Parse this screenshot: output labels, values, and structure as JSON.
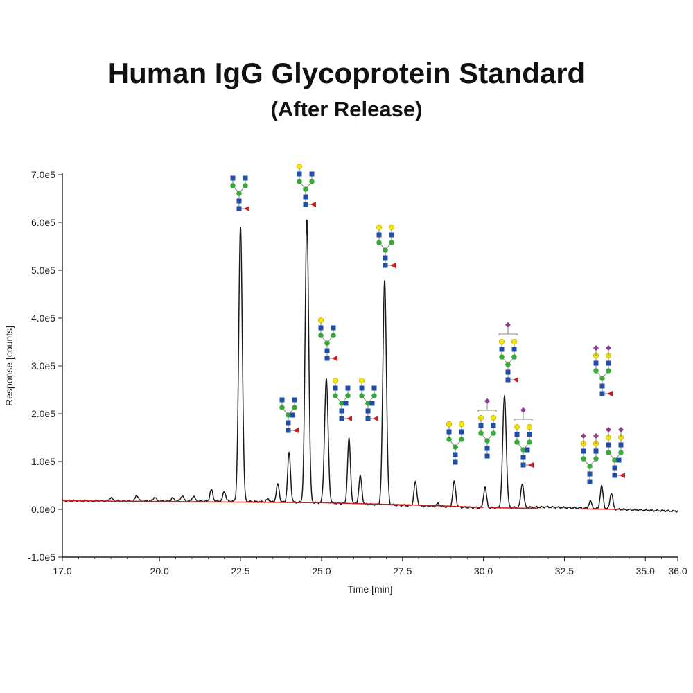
{
  "chart_data": {
    "type": "line",
    "title": "Human IgG Glycoprotein Standard",
    "subtitle": "(After Release)",
    "xlabel": "Time [min]",
    "ylabel": "Response [counts]",
    "xlim": [
      17.0,
      36.0
    ],
    "ylim": [
      -100000,
      700000
    ],
    "x_tick_values": [
      17.0,
      20.0,
      22.5,
      25.0,
      27.5,
      30.0,
      32.5,
      35.0,
      36.0
    ],
    "x_tick_labels": [
      "17.0",
      "20.0",
      "22.5",
      "25.0",
      "27.5",
      "30.0",
      "32.5",
      "35.0",
      "36.0"
    ],
    "y_tick_values": [
      -100000,
      0,
      100000,
      200000,
      300000,
      400000,
      500000,
      600000,
      700000
    ],
    "y_tick_labels": [
      "-1.0e5",
      "0.0e0",
      "1.0e5",
      "2.0e5",
      "3.0e5",
      "4.0e5",
      "5.0e5",
      "6.0e5",
      "7.0e5"
    ],
    "grid": false,
    "series": [
      {
        "color": "#1a1a1a",
        "baseline": [
          [
            17.0,
            18000
          ],
          [
            22.0,
            17000
          ],
          [
            25.0,
            14000
          ],
          [
            30.0,
            3000
          ],
          [
            32.0,
            5000
          ],
          [
            36.0,
            -4000
          ]
        ],
        "peaks": [
          {
            "x": 18.5,
            "height": 7000
          },
          {
            "x": 19.3,
            "height": 12000
          },
          {
            "x": 19.85,
            "height": 8000
          },
          {
            "x": 20.4,
            "height": 6000
          },
          {
            "x": 20.7,
            "height": 11000
          },
          {
            "x": 21.05,
            "height": 10000
          },
          {
            "x": 21.6,
            "height": 24000
          },
          {
            "x": 22.0,
            "height": 20000
          },
          {
            "x": 22.5,
            "height": 575000
          },
          {
            "x": 23.35,
            "height": 6000
          },
          {
            "x": 23.65,
            "height": 37000
          },
          {
            "x": 24.0,
            "height": 103000
          },
          {
            "x": 24.55,
            "height": 593000
          },
          {
            "x": 25.15,
            "height": 258000
          },
          {
            "x": 25.85,
            "height": 135000
          },
          {
            "x": 26.2,
            "height": 58000
          },
          {
            "x": 26.95,
            "height": 470000
          },
          {
            "x": 27.9,
            "height": 49000
          },
          {
            "x": 28.6,
            "height": 6000
          },
          {
            "x": 29.1,
            "height": 53000
          },
          {
            "x": 30.05,
            "height": 43000
          },
          {
            "x": 30.65,
            "height": 233000
          },
          {
            "x": 31.2,
            "height": 50000
          },
          {
            "x": 33.3,
            "height": 15000
          },
          {
            "x": 33.65,
            "height": 47000
          },
          {
            "x": 33.95,
            "height": 33000
          }
        ]
      },
      {
        "color": "#d01a1a",
        "segments": [
          [
            [
              17.0,
              18000
            ],
            [
              25.0,
              14000
            ],
            [
              28.5,
              8000
            ],
            [
              30.0,
              4000
            ]
          ],
          [
            [
              30.2,
              3500
            ],
            [
              31.7,
              2000
            ]
          ],
          [
            [
              33.0,
              1000
            ],
            [
              34.2,
              0
            ]
          ]
        ]
      }
    ],
    "glycan_annotations": [
      {
        "x": 22.5,
        "structure": "G0F"
      },
      {
        "x": 24.0,
        "structure": "G0FB"
      },
      {
        "x": 24.55,
        "structure": "G1F"
      },
      {
        "x": 25.15,
        "structure": "G1F"
      },
      {
        "x": 25.85,
        "structure": "G1FB"
      },
      {
        "x": 26.2,
        "structure": "G1FB"
      },
      {
        "x": 26.95,
        "structure": "G2F"
      },
      {
        "x": 29.1,
        "structure": "G2"
      },
      {
        "x": 30.05,
        "structure": "A1"
      },
      {
        "x": 30.65,
        "structure": "A1F"
      },
      {
        "x": 31.2,
        "structure": "A1FB"
      },
      {
        "x": 33.3,
        "structure": "A2"
      },
      {
        "x": 33.65,
        "structure": "A2F"
      },
      {
        "x": 33.95,
        "structure": "A2FB"
      }
    ],
    "symbol_colors": {
      "GlcNAc": "#1f4ea8",
      "Mannose": "#3aa83a",
      "Galactose": "#f2e400",
      "Fucose": "#d11a1a",
      "Sialic acid": "#8e3d8e"
    }
  }
}
